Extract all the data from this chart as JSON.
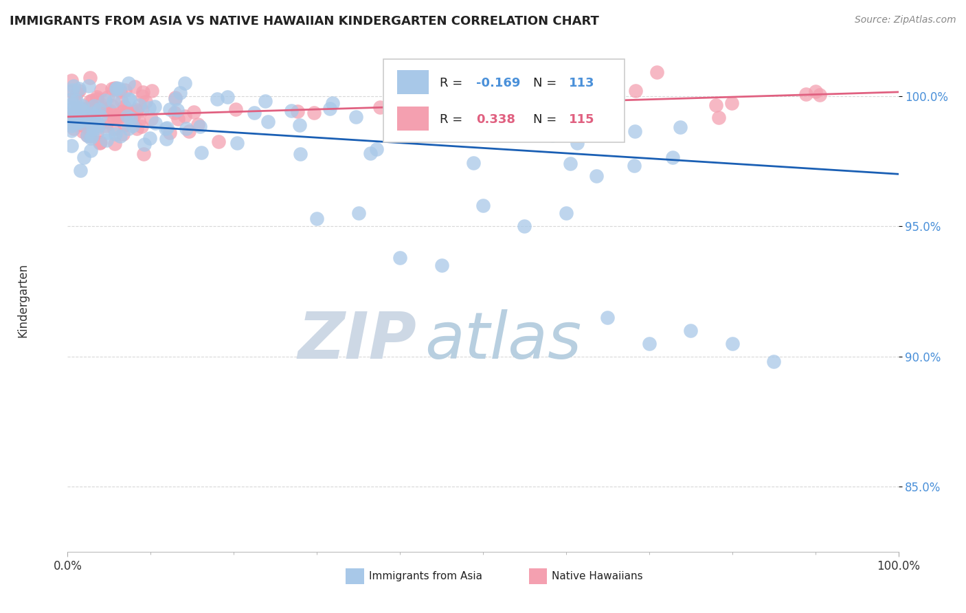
{
  "title": "IMMIGRANTS FROM ASIA VS NATIVE HAWAIIAN KINDERGARTEN CORRELATION CHART",
  "source_text": "Source: ZipAtlas.com",
  "ylabel": "Kindergarten",
  "x_min": 0.0,
  "x_max": 100.0,
  "y_min": 82.5,
  "y_max": 101.8,
  "y_ticks": [
    85.0,
    90.0,
    95.0,
    100.0
  ],
  "y_tick_labels": [
    "85.0%",
    "90.0%",
    "95.0%",
    "100.0%"
  ],
  "x_tick_labels": [
    "0.0%",
    "100.0%"
  ],
  "legend_r_blue": "-0.169",
  "legend_n_blue": "113",
  "legend_r_pink": "0.338",
  "legend_n_pink": "115",
  "blue_color": "#a8c8e8",
  "pink_color": "#f4a0b0",
  "blue_line_color": "#1a5fb4",
  "pink_line_color": "#e06080",
  "watermark_color": "#c8d8e8",
  "background_color": "#ffffff",
  "grid_color": "#d8d8d8",
  "blue_line_y0": 99.0,
  "blue_line_y1": 97.0,
  "pink_line_y0": 99.2,
  "pink_line_y1": 100.15
}
